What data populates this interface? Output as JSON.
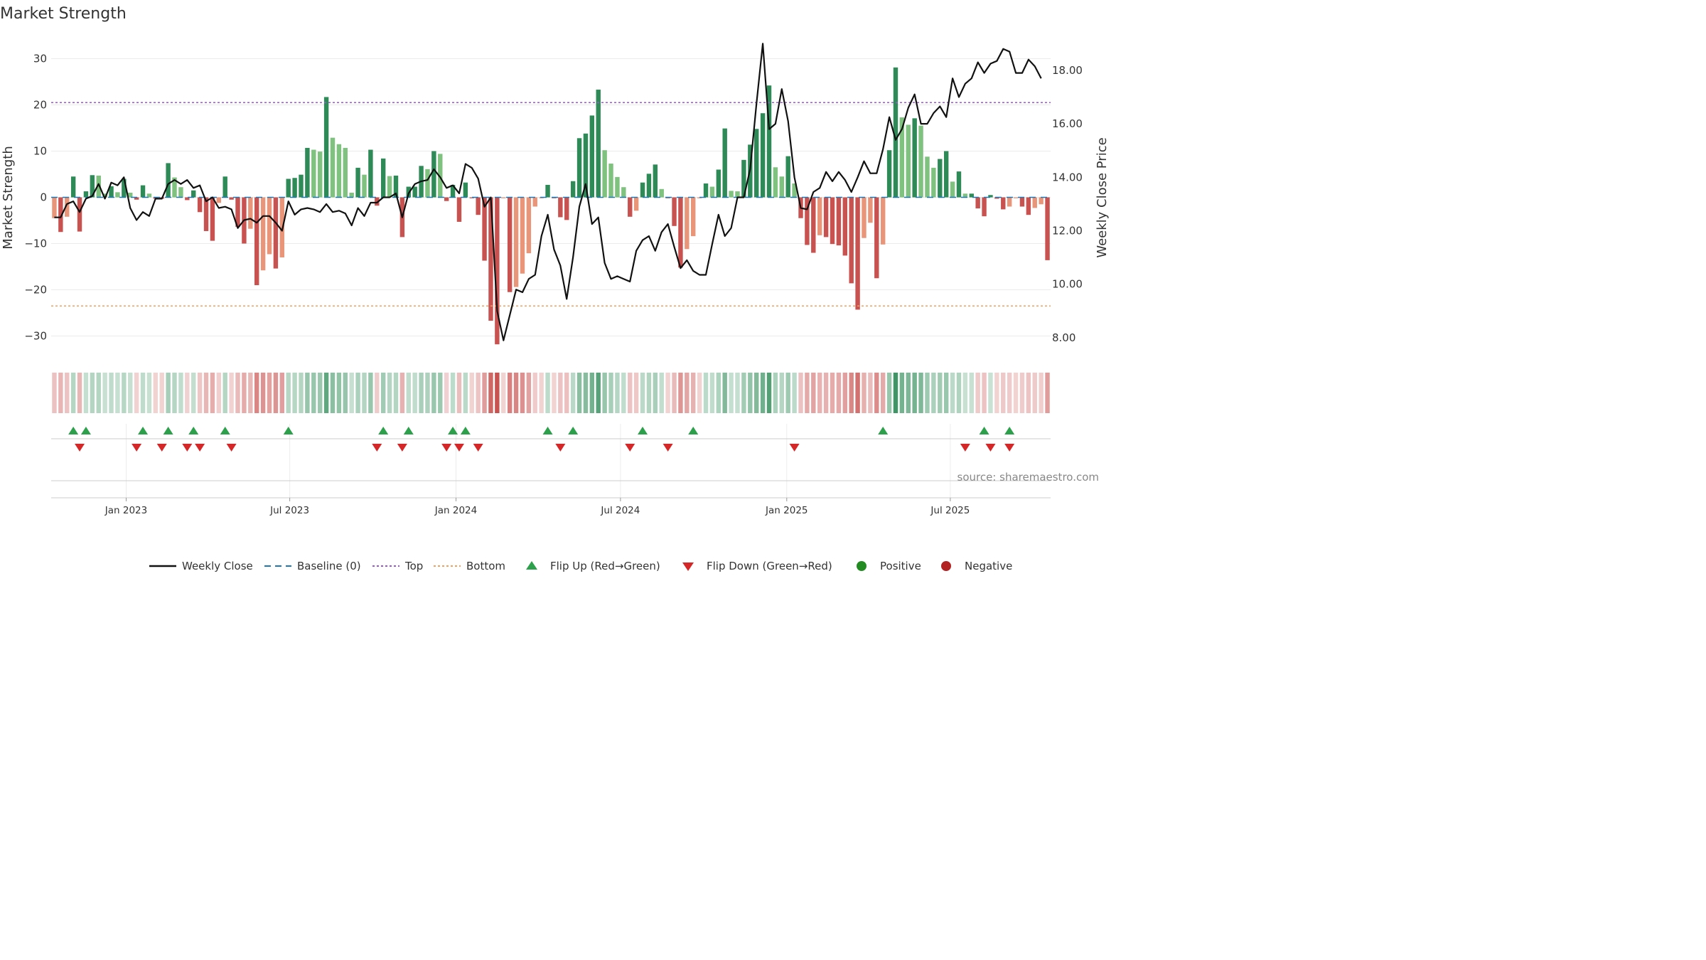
{
  "colors": {
    "pos_strong": "#2e8b57",
    "pos_weak": "#7fc17f",
    "neg_strong": "#c85250",
    "neg_weak": "#e8957a",
    "close_line": "#111111",
    "baseline": "#1f77b4",
    "top_line": "#9b59d0",
    "bottom_line": "#f0a060",
    "flip_up": "#2ca04a",
    "flip_down": "#d62728",
    "positive": "#228b22",
    "negative": "#b22222"
  },
  "chart_data": {
    "type": "bar",
    "title": "Market Strength",
    "ylabel": "Market Strength",
    "y2label": "Weekly Close Price",
    "ylim": [
      -35,
      35
    ],
    "y2lim": [
      7.2,
      19.3
    ],
    "yticks": [
      30,
      20,
      10,
      0,
      -10,
      -20,
      -30
    ],
    "ytick_labels": [
      "30",
      "20",
      "10",
      "0",
      "−10",
      "−20",
      "−30"
    ],
    "y2ticks": [
      18,
      16,
      14,
      12,
      10,
      8
    ],
    "y2tick_labels": [
      "18.00",
      "16.00",
      "14.00",
      "12.00",
      "10.00",
      "8.00"
    ],
    "top_level": 20.5,
    "bottom_level": -23.5,
    "x_start": "2022-10-10",
    "x_end": "2025-10-20",
    "xticks": [
      {
        "date": "2023-01-01",
        "label": "Jan 2023"
      },
      {
        "date": "2023-07-01",
        "label": "Jul 2023"
      },
      {
        "date": "2024-01-01",
        "label": "Jan 2024"
      },
      {
        "date": "2024-07-01",
        "label": "Jul 2024"
      },
      {
        "date": "2025-01-01",
        "label": "Jan 2025"
      },
      {
        "date": "2025-07-01",
        "label": "Jul 2025"
      }
    ],
    "strength": [
      -4.5,
      -7.5,
      -4.2,
      4.5,
      -7.4,
      1.3,
      4.8,
      4.7,
      0.8,
      2.4,
      1.1,
      4.0,
      1.0,
      -0.5,
      2.6,
      0.8,
      -0.3,
      -0.3,
      7.4,
      4.3,
      2.2,
      -0.6,
      1.5,
      -3.2,
      -7.3,
      -9.4,
      -1.2,
      4.5,
      -0.5,
      -6.4,
      -10.0,
      -6.8,
      -19.0,
      -15.8,
      -12.3,
      -15.4,
      -13.0,
      4.0,
      4.2,
      4.9,
      10.7,
      10.3,
      9.9,
      21.7,
      12.9,
      11.5,
      10.7,
      1.0,
      6.4,
      4.9,
      10.3,
      -1.8,
      8.4,
      4.6,
      4.7,
      -8.6,
      2.3,
      2.3,
      6.8,
      6.1,
      10.0,
      9.4,
      -0.8,
      2.7,
      -5.3,
      3.2,
      -0.2,
      -3.8,
      -13.7,
      -26.7,
      -31.8,
      -0.2,
      -20.5,
      -19.4,
      -16.5,
      -12.1,
      -2.0,
      -0.2,
      2.7,
      -0.2,
      -4.3,
      -4.9,
      3.5,
      12.8,
      13.8,
      17.7,
      23.3,
      10.2,
      7.3,
      4.4,
      2.2,
      -4.2,
      -2.9,
      3.2,
      5.1,
      7.1,
      1.8,
      -0.2,
      -6.2,
      -15.2,
      -11.2,
      -8.4,
      -0.2,
      3.0,
      2.3,
      6.0,
      14.9,
      1.4,
      1.3,
      8.1,
      11.4,
      14.8,
      18.2,
      24.2,
      6.5,
      4.5,
      8.9,
      3.0,
      -4.5,
      -10.3,
      -12.0,
      -8.2,
      -8.6,
      -10.1,
      -10.4,
      -12.6,
      -18.6,
      -24.3,
      -8.8,
      -5.5,
      -17.5,
      -10.2,
      10.2,
      28.1,
      17.3,
      15.7,
      17.1,
      15.5,
      8.8,
      6.4,
      8.3,
      10.0,
      3.4,
      5.6,
      0.8,
      0.8,
      -2.4,
      -4.1,
      0.5,
      -0.3,
      -2.6,
      -2.0,
      -0.2,
      -2.0,
      -3.8,
      -2.3,
      -1.5,
      -13.6
    ],
    "weekly_close": [
      12.5,
      12.5,
      13.0,
      13.1,
      12.7,
      13.2,
      13.3,
      13.75,
      13.2,
      13.8,
      13.7,
      14.0,
      12.85,
      12.4,
      12.7,
      12.55,
      13.2,
      13.2,
      13.75,
      13.9,
      13.75,
      13.9,
      13.6,
      13.7,
      13.1,
      13.25,
      12.85,
      12.9,
      12.8,
      12.1,
      12.4,
      12.45,
      12.3,
      12.55,
      12.55,
      12.3,
      12.0,
      13.1,
      12.6,
      12.8,
      12.85,
      12.8,
      12.7,
      13.0,
      12.7,
      12.75,
      12.65,
      12.2,
      12.85,
      12.55,
      13.05,
      13.05,
      13.25,
      13.25,
      13.4,
      12.5,
      13.4,
      13.75,
      13.85,
      13.9,
      14.3,
      14.0,
      13.6,
      13.7,
      13.4,
      14.5,
      14.35,
      13.95,
      12.9,
      13.25,
      9.0,
      7.9,
      8.85,
      9.8,
      9.7,
      10.2,
      10.35,
      11.8,
      12.6,
      11.3,
      10.7,
      9.45,
      11.0,
      12.9,
      13.75,
      12.25,
      12.5,
      10.8,
      10.2,
      10.3,
      10.2,
      10.1,
      11.25,
      11.65,
      11.8,
      11.25,
      11.95,
      12.25,
      11.4,
      10.6,
      10.9,
      10.5,
      10.35,
      10.35,
      11.5,
      12.6,
      11.8,
      12.1,
      13.25,
      13.25,
      14.3,
      16.75,
      19.0,
      15.8,
      16.0,
      17.3,
      16.1,
      14.0,
      12.85,
      12.8,
      13.45,
      13.6,
      14.2,
      13.85,
      14.2,
      13.9,
      13.45,
      14.0,
      14.6,
      14.15,
      14.15,
      15.05,
      16.25,
      15.4,
      15.8,
      16.6,
      17.1,
      16.0,
      16.0,
      16.4,
      16.65,
      16.25,
      17.7,
      17.0,
      17.5,
      17.7,
      18.3,
      17.9,
      18.25,
      18.35,
      18.8,
      18.7,
      17.9,
      17.9,
      18.4,
      18.15,
      17.7
    ],
    "flip_up_weeks": [
      3,
      5,
      14,
      18,
      22,
      27,
      37,
      52,
      56,
      63,
      65,
      78,
      82,
      93,
      101,
      131,
      147,
      151
    ],
    "flip_down_weeks": [
      4,
      13,
      17,
      21,
      23,
      28,
      51,
      55,
      62,
      64,
      67,
      80,
      91,
      97,
      117,
      144,
      148,
      151
    ]
  },
  "legend": [
    {
      "key": "weekly_close",
      "label": "Weekly Close"
    },
    {
      "key": "baseline",
      "label": "Baseline (0)"
    },
    {
      "key": "top",
      "label": "Top"
    },
    {
      "key": "bottom",
      "label": "Bottom"
    },
    {
      "key": "flip_up",
      "label": "Flip Up (Red→Green)"
    },
    {
      "key": "flip_down",
      "label": "Flip Down (Green→Red)"
    },
    {
      "key": "positive",
      "label": "Positive"
    },
    {
      "key": "negative",
      "label": "Negative"
    }
  ],
  "source": "source: sharemaestro.com"
}
